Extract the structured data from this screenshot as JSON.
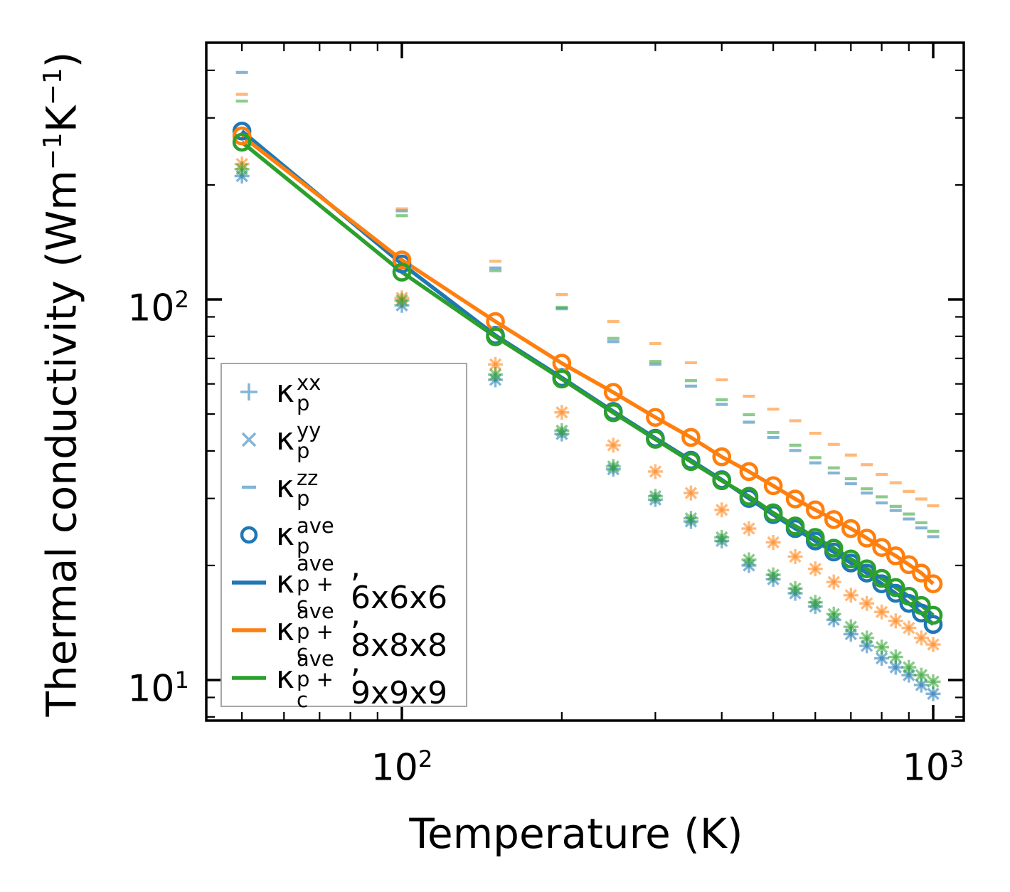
{
  "figure": {
    "background": "#ffffff"
  },
  "colors": {
    "mesh_6x6x6": "#1f77b4",
    "mesh_8x8x8": "#ff7f0e",
    "mesh_9x9x9": "#2ca02c",
    "scatter_alpha": 0.55,
    "spine": "#000000",
    "legend_border": "#a6a6a6",
    "text": "#000000"
  },
  "axes": {
    "x": {
      "label": "Temperature (K)",
      "scale": "log",
      "lim": [
        43,
        1140
      ],
      "major_ticks": [
        100,
        1000
      ],
      "minor_ticks": [
        50,
        60,
        70,
        80,
        90,
        200,
        300,
        400,
        500,
        600,
        700,
        800,
        900
      ],
      "tick_labels": [
        {
          "base": "10",
          "exp": "2"
        },
        {
          "base": "10",
          "exp": "3"
        }
      ]
    },
    "y": {
      "label_parts": {
        "pre": "Thermal conductivity (Wm",
        "sup1": "−1",
        "mid": "K",
        "sup2": "−1",
        "post": ")"
      },
      "scale": "log",
      "lim": [
        7.8,
        470
      ],
      "major_ticks": [
        10,
        100
      ],
      "minor_ticks": [
        8,
        9,
        20,
        30,
        40,
        50,
        60,
        70,
        80,
        90,
        200,
        300,
        400
      ],
      "tick_labels": [
        {
          "base": "10",
          "exp": "2"
        },
        {
          "base": "10",
          "exp": "1"
        }
      ]
    }
  },
  "legend": {
    "entries": [
      {
        "marker": "plus",
        "kappa": "κ",
        "sup": "xx",
        "sub": "p",
        "suffix": ""
      },
      {
        "marker": "cross",
        "kappa": "κ",
        "sup": "yy",
        "sub": "p",
        "suffix": ""
      },
      {
        "marker": "dash",
        "kappa": "κ",
        "sup": "zz",
        "sub": "p",
        "suffix": ""
      },
      {
        "marker": "circle",
        "kappa": "κ",
        "sup": "ave",
        "sub": "p",
        "suffix": ""
      },
      {
        "marker": "line-blue",
        "kappa": "κ",
        "sup": "ave",
        "sub": "p + c",
        "suffix": ", 6x6x6"
      },
      {
        "marker": "line-orange",
        "kappa": "κ",
        "sup": "ave",
        "sub": "p + c",
        "suffix": ", 8x8x8"
      },
      {
        "marker": "line-green",
        "kappa": "κ",
        "sup": "ave",
        "sub": "p + c",
        "suffix": ", 9x9x9"
      }
    ]
  },
  "chart_data": {
    "type": "line",
    "title": "",
    "xlabel": "Temperature (K)",
    "ylabel": "Thermal conductivity (Wm−1K−1)",
    "xscale": "log",
    "yscale": "log",
    "xlim": [
      43,
      1140
    ],
    "ylim": [
      7.8,
      470
    ],
    "grid": false,
    "legend_position": "lower left",
    "x": [
      50,
      100,
      150,
      200,
      250,
      300,
      350,
      400,
      450,
      500,
      550,
      600,
      650,
      700,
      750,
      800,
      850,
      900,
      950,
      1000
    ],
    "series": [
      {
        "name": "kappa_p_xx, 6x6x6",
        "component": "xx",
        "mesh": "6x6x6",
        "marker": "plus",
        "color_key": "mesh_6x6x6",
        "light": true,
        "values": [
          211,
          96.5,
          61.5,
          44.3,
          35.8,
          29.8,
          26.1,
          23.2,
          20.0,
          18.4,
          16.9,
          15.6,
          14.4,
          13.2,
          12.3,
          11.4,
          10.8,
          10.3,
          9.7,
          9.2
        ]
      },
      {
        "name": "kappa_p_yy, 6x6x6",
        "component": "yy",
        "mesh": "6x6x6",
        "marker": "cross",
        "color_key": "mesh_6x6x6",
        "light": true,
        "values": [
          211,
          96.5,
          61.5,
          44.3,
          35.8,
          29.8,
          26.1,
          23.2,
          20.0,
          18.4,
          16.9,
          15.6,
          14.4,
          13.2,
          12.3,
          11.4,
          10.8,
          10.3,
          9.7,
          9.2
        ]
      },
      {
        "name": "kappa_p_zz, 6x6x6",
        "component": "zz",
        "mesh": "6x6x6",
        "marker": "dash",
        "color_key": "mesh_6x6x6",
        "light": true,
        "values": [
          395,
          171,
          121,
          94.5,
          77.5,
          67.6,
          59.2,
          53.0,
          47.6,
          43.4,
          40.1,
          37.2,
          35.0,
          32.8,
          31.0,
          29.2,
          27.9,
          26.5,
          25.1,
          23.8
        ]
      },
      {
        "name": "kappa_p_ave, 6x6x6",
        "component": "ave",
        "mesh": "6x6x6",
        "marker": "circle",
        "color_key": "mesh_6x6x6",
        "light": false,
        "values": [
          277,
          124,
          80.5,
          62.3,
          50.8,
          43.2,
          37.8,
          33.6,
          30.0,
          27.2,
          25.0,
          23.2,
          21.7,
          20.3,
          19.1,
          17.9,
          16.9,
          15.9,
          15.0,
          14.0
        ]
      },
      {
        "name": "kappa_p+c_ave, 6x6x6",
        "component": "ave_p+c",
        "mesh": "6x6x6",
        "marker": "line",
        "color_key": "mesh_6x6x6",
        "light": false,
        "values": [
          277,
          124,
          80.5,
          62.3,
          50.8,
          43.2,
          37.8,
          33.6,
          30.0,
          27.2,
          25.0,
          23.2,
          21.7,
          20.3,
          19.1,
          17.9,
          16.9,
          15.9,
          15.0,
          14.0
        ]
      },
      {
        "name": "kappa_p_xx, 8x8x8",
        "component": "xx",
        "mesh": "8x8x8",
        "marker": "plus",
        "color_key": "mesh_8x8x8",
        "light": true,
        "values": [
          227,
          101,
          67.5,
          50.5,
          41.4,
          35.3,
          31.0,
          28.0,
          25.0,
          23.0,
          21.1,
          19.6,
          18.1,
          16.7,
          15.9,
          15.1,
          14.3,
          13.7,
          12.9,
          12.4
        ]
      },
      {
        "name": "kappa_p_yy, 8x8x8",
        "component": "yy",
        "mesh": "8x8x8",
        "marker": "cross",
        "color_key": "mesh_8x8x8",
        "light": true,
        "values": [
          227,
          101,
          67.5,
          50.5,
          41.4,
          35.3,
          31.0,
          28.0,
          25.0,
          23.0,
          21.1,
          19.6,
          18.1,
          16.7,
          15.9,
          15.1,
          14.3,
          13.7,
          12.9,
          12.4
        ]
      },
      {
        "name": "kappa_p_zz, 8x8x8",
        "component": "zz",
        "mesh": "8x8x8",
        "marker": "dash",
        "color_key": "mesh_8x8x8",
        "light": true,
        "values": [
          346,
          173,
          126,
          103,
          87.5,
          76.6,
          68.2,
          61.5,
          55.7,
          51.5,
          48.0,
          44.5,
          41.6,
          39.0,
          36.8,
          34.7,
          33.0,
          31.3,
          29.9,
          28.7
        ]
      },
      {
        "name": "kappa_p_ave, 8x8x8",
        "component": "ave",
        "mesh": "8x8x8",
        "marker": "circle",
        "color_key": "mesh_8x8x8",
        "light": false,
        "values": [
          269,
          127,
          87.5,
          68.0,
          57.0,
          49.0,
          43.4,
          38.6,
          35.3,
          32.4,
          29.9,
          28.0,
          26.4,
          25.0,
          23.6,
          22.3,
          21.2,
          20.1,
          19.1,
          17.9
        ]
      },
      {
        "name": "kappa_p+c_ave, 8x8x8",
        "component": "ave_p+c",
        "mesh": "8x8x8",
        "marker": "line",
        "color_key": "mesh_8x8x8",
        "light": false,
        "values": [
          269,
          127,
          87.5,
          68.0,
          57.0,
          49.0,
          43.4,
          38.6,
          35.3,
          32.4,
          29.9,
          28.0,
          26.4,
          25.0,
          23.6,
          22.3,
          21.2,
          20.1,
          19.1,
          17.9
        ]
      },
      {
        "name": "kappa_p_xx, 9x9x9",
        "component": "xx",
        "mesh": "9x9x9",
        "marker": "plus",
        "color_key": "mesh_9x9x9",
        "light": true,
        "values": [
          220,
          99.5,
          63.5,
          45.2,
          36.4,
          30.4,
          26.6,
          23.7,
          20.7,
          18.9,
          17.4,
          16.0,
          14.9,
          13.8,
          12.9,
          12.2,
          11.5,
          10.8,
          10.3,
          9.9
        ]
      },
      {
        "name": "kappa_p_yy, 9x9x9",
        "component": "yy",
        "mesh": "9x9x9",
        "marker": "cross",
        "color_key": "mesh_9x9x9",
        "light": true,
        "values": [
          220,
          99.5,
          63.5,
          45.2,
          36.4,
          30.4,
          26.6,
          23.7,
          20.7,
          18.9,
          17.4,
          16.0,
          14.9,
          13.8,
          12.9,
          12.2,
          11.5,
          10.8,
          10.3,
          9.9
        ]
      },
      {
        "name": "kappa_p_zz, 9x9x9",
        "component": "zz",
        "mesh": "9x9x9",
        "marker": "dash",
        "color_key": "mesh_9x9x9",
        "light": true,
        "values": [
          332,
          166,
          119,
          95.4,
          79.0,
          68.7,
          61.2,
          54.5,
          49.8,
          44.7,
          41.4,
          38.4,
          36.1,
          33.8,
          31.8,
          30.3,
          28.6,
          27.3,
          25.9,
          24.6
        ]
      },
      {
        "name": "kappa_p_ave, 9x9x9",
        "component": "ave",
        "mesh": "9x9x9",
        "marker": "circle",
        "color_key": "mesh_9x9x9",
        "light": false,
        "values": [
          259,
          118,
          79.8,
          61.8,
          50.4,
          42.9,
          37.5,
          33.4,
          30.4,
          27.5,
          25.4,
          23.7,
          22.2,
          20.8,
          19.6,
          18.5,
          17.5,
          16.6,
          15.7,
          14.8
        ]
      },
      {
        "name": "kappa_p+c_ave, 9x9x9",
        "component": "ave_p+c",
        "mesh": "9x9x9",
        "marker": "line",
        "color_key": "mesh_9x9x9",
        "light": false,
        "values": [
          259,
          118,
          79.8,
          61.8,
          50.4,
          42.9,
          37.5,
          33.4,
          30.4,
          27.5,
          25.4,
          23.7,
          22.2,
          20.8,
          19.6,
          18.5,
          17.5,
          16.6,
          15.7,
          14.8
        ]
      }
    ]
  }
}
